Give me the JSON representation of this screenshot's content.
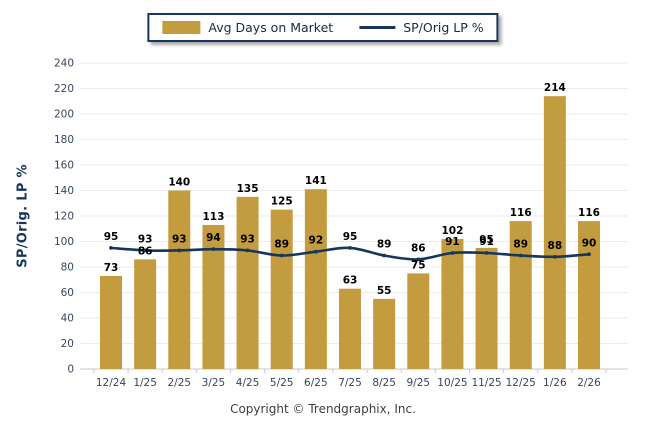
{
  "legend": {
    "bar_label": "Avg Days on Market",
    "line_label": "SP/Orig LP %"
  },
  "ylabel": "SP/Orig. LP %",
  "copyright": "Copyright © Trendgraphix, Inc.",
  "colors": {
    "bar": "#C39C3F",
    "line": "#17365D",
    "grid": "#EBEBEB",
    "axis_line": "#C9C9C9",
    "tick_text": "#36465C",
    "value_text": "#000000",
    "legend_border": "#17365D",
    "ylabel_text": "#17365D",
    "copyright_text": "#3F3F3F"
  },
  "chart_data": {
    "type": "bar",
    "subtype": "bar+line combo",
    "categories": [
      "12/24",
      "1/25",
      "2/25",
      "3/25",
      "4/25",
      "5/25",
      "6/25",
      "7/25",
      "8/25",
      "9/25",
      "10/25",
      "11/25",
      "12/25",
      "1/26",
      "2/26"
    ],
    "series": [
      {
        "name": "Avg Days on Market",
        "type": "bar",
        "values": [
          73,
          86,
          140,
          113,
          135,
          125,
          141,
          63,
          55,
          75,
          102,
          95,
          116,
          214,
          116
        ]
      },
      {
        "name": "SP/Orig LP %",
        "type": "line",
        "values": [
          95,
          93,
          93,
          94,
          93,
          89,
          92,
          95,
          89,
          86,
          91,
          91,
          89,
          88,
          90
        ]
      }
    ],
    "title": "",
    "xlabel": "",
    "ylabel": "SP/Orig. LP %",
    "ylim": [
      0,
      240
    ],
    "ytick_step": 20,
    "grid": true,
    "legend_position": "top-center",
    "value_labels_shown": true
  }
}
